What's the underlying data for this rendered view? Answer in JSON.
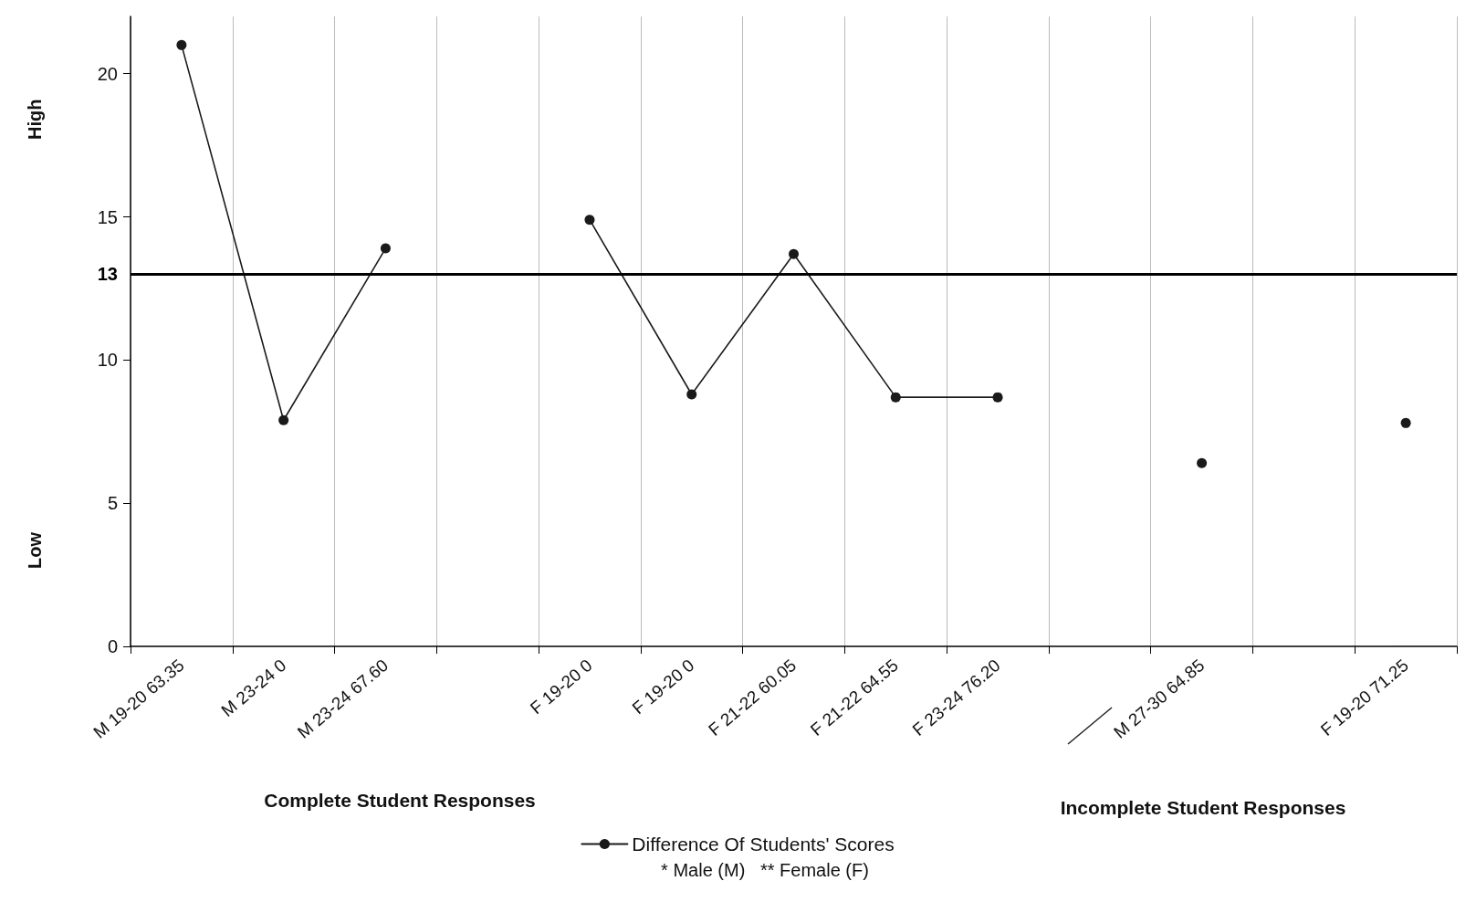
{
  "chart_data": {
    "type": "line",
    "categories": [
      "M 19-20 63.35",
      "M 23-24 0",
      "M 23-24 67.60",
      null,
      "F 19-20 0",
      "F 19-20 0",
      "F 21-22 60.05",
      "F 21-22 64.55",
      "F 23-24 76.20",
      null,
      "M 27-30 64.85",
      null,
      "F 19-20 71.25"
    ],
    "series": [
      {
        "name": "Difference Of Students' Scores",
        "color": "#1a1a1a",
        "values": [
          21,
          7.9,
          13.9,
          null,
          14.9,
          8.8,
          13.7,
          8.7,
          8.7,
          null,
          6.4,
          null,
          7.8
        ]
      }
    ],
    "ylim": [
      0,
      22
    ],
    "yticks": [
      0,
      5,
      10,
      15,
      20
    ],
    "ref_lines": [
      {
        "axis": "y",
        "value": 13,
        "label": "13",
        "color": "#000000",
        "line_style": "solid"
      }
    ],
    "annotations": [
      "High",
      "Low",
      "Complete Student Responses",
      "Incomplete Student Responses",
      "* Male (M)   ** Female (F)"
    ],
    "grid": "x",
    "legend": "bottom",
    "marker": "circle",
    "line_style": "solid"
  }
}
